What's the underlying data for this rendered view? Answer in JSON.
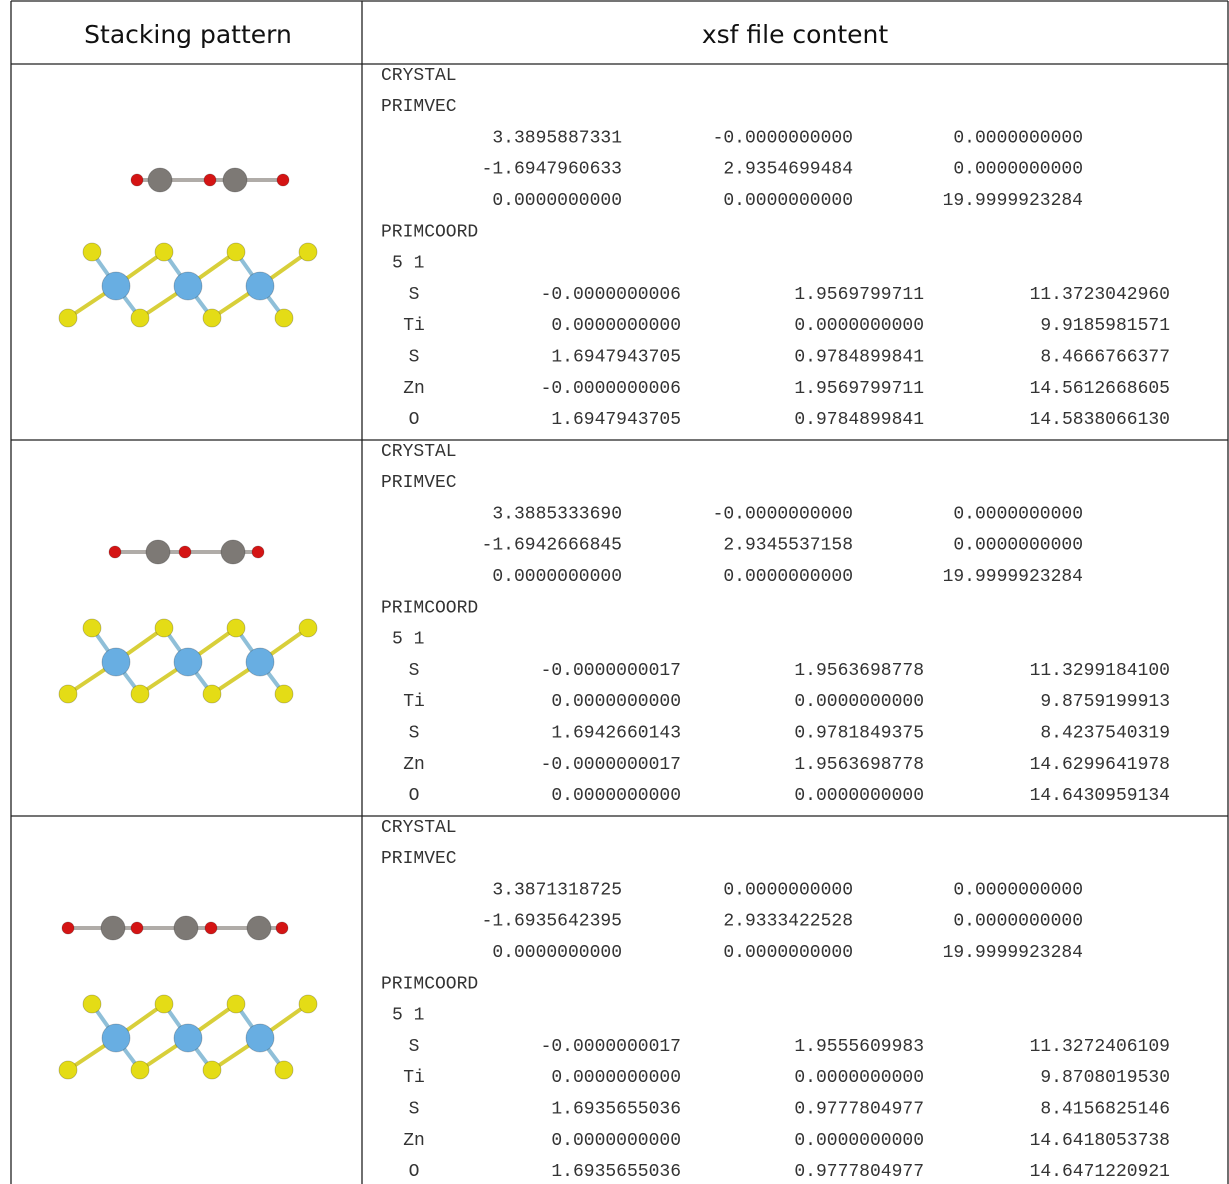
{
  "table": {
    "headers": [
      "Stacking pattern",
      "xsf file content"
    ],
    "rows": [
      {
        "crystal": "CRYSTAL",
        "primvec_label": "PRIMVEC",
        "primvec": [
          [
            "3.3895887331",
            "-0.0000000000",
            "0.0000000000"
          ],
          [
            "-1.6947960633",
            "2.9354699484",
            "0.0000000000"
          ],
          [
            "0.0000000000",
            "0.0000000000",
            "19.9999923284"
          ]
        ],
        "primcoord_label": "PRIMCOORD",
        "counts": "5 1",
        "atoms": [
          [
            "S",
            "-0.0000000006",
            "1.9569799711",
            "11.3723042960"
          ],
          [
            "Ti",
            "0.0000000000",
            "0.0000000000",
            "9.9185981571"
          ],
          [
            "S",
            "1.6947943705",
            "0.9784899841",
            "8.4666766377"
          ],
          [
            "Zn",
            "-0.0000000006",
            "1.9569799711",
            "14.5612668605"
          ],
          [
            "O",
            "1.6947943705",
            "0.9784899841",
            "14.5838066130"
          ]
        ]
      },
      {
        "crystal": "CRYSTAL",
        "primvec_label": "PRIMVEC",
        "primvec": [
          [
            "3.3885333690",
            "-0.0000000000",
            "0.0000000000"
          ],
          [
            "-1.6942666845",
            "2.9345537158",
            "0.0000000000"
          ],
          [
            "0.0000000000",
            "0.0000000000",
            "19.9999923284"
          ]
        ],
        "primcoord_label": "PRIMCOORD",
        "counts": "5 1",
        "atoms": [
          [
            "S",
            "-0.0000000017",
            "1.9563698778",
            "11.3299184100"
          ],
          [
            "Ti",
            "0.0000000000",
            "0.0000000000",
            "9.8759199913"
          ],
          [
            "S",
            "1.6942660143",
            "0.9781849375",
            "8.4237540319"
          ],
          [
            "Zn",
            "-0.0000000017",
            "1.9563698778",
            "14.6299641978"
          ],
          [
            "O",
            "0.0000000000",
            "0.0000000000",
            "14.6430959134"
          ]
        ]
      },
      {
        "crystal": "CRYSTAL",
        "primvec_label": "PRIMVEC",
        "primvec": [
          [
            "3.3871318725",
            "0.0000000000",
            "0.0000000000"
          ],
          [
            "-1.6935642395",
            "2.9333422528",
            "0.0000000000"
          ],
          [
            "0.0000000000",
            "0.0000000000",
            "19.9999923284"
          ]
        ],
        "primcoord_label": "PRIMCOORD",
        "counts": "5 1",
        "atoms": [
          [
            "S",
            "-0.0000000017",
            "1.9555609983",
            "11.3272406109"
          ],
          [
            "Ti",
            "0.0000000000",
            "0.0000000000",
            "9.8708019530"
          ],
          [
            "S",
            "1.6935655036",
            "0.9777804977",
            "8.4156825146"
          ],
          [
            "Zn",
            "0.0000000000",
            "0.0000000000",
            "14.6418053738"
          ],
          [
            "O",
            "1.6935655036",
            "0.9777804977",
            "14.6471220921"
          ]
        ]
      }
    ]
  }
}
